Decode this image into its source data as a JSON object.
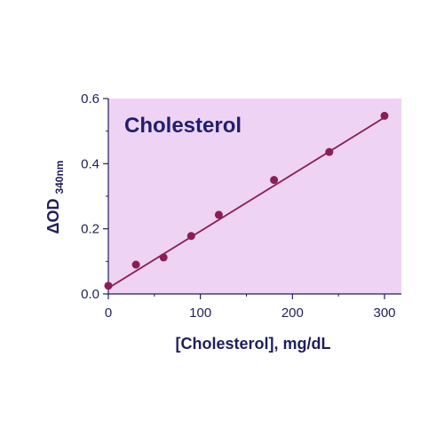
{
  "chart_data": {
    "type": "scatter",
    "title": "Cholesterol",
    "xlabel": "[Cholesterol], mg/dL",
    "ylabel": {
      "main": "ΔOD",
      "sub": "340nm"
    },
    "xlim": [
      0,
      310
    ],
    "ylim": [
      0,
      0.6
    ],
    "xticks": [
      0,
      100,
      200,
      300
    ],
    "xtick_labels": [
      "0",
      "100",
      "200",
      "300"
    ],
    "yticks": [
      0,
      0.2,
      0.4,
      0.6
    ],
    "ytick_labels": [
      "0.0",
      "0.2",
      "0.4",
      "0.6"
    ],
    "grid": false,
    "series": [
      {
        "x": [
          0,
          30,
          60,
          90,
          120,
          180,
          240,
          300
        ],
        "y": [
          0.025,
          0.09,
          0.112,
          0.178,
          0.243,
          0.35,
          0.436,
          0.547
        ]
      }
    ],
    "fit_line": {
      "x": [
        0,
        300
      ],
      "y": [
        0.018,
        0.542
      ]
    },
    "colors": {
      "plot_background": "#eed3f4",
      "axis": "#1f1f5c",
      "marker": "#8b1d56",
      "fit_line": "#8b1d56"
    }
  }
}
